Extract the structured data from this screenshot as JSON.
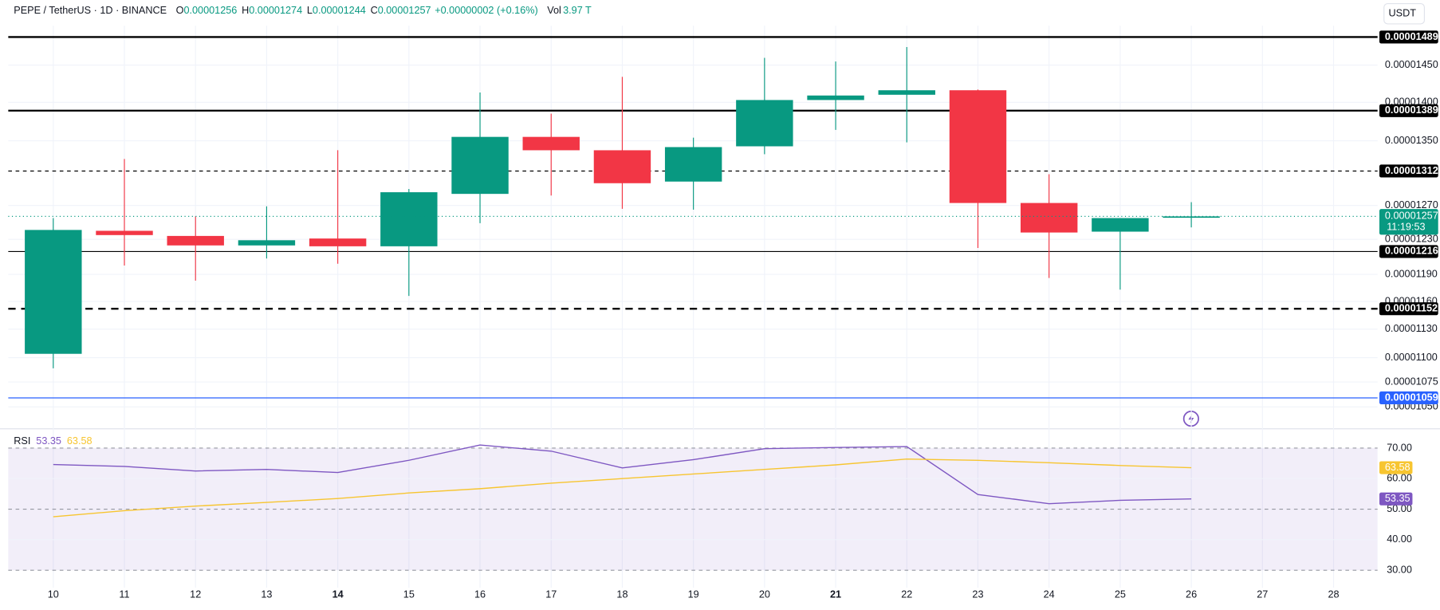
{
  "header": {
    "symbol": "PEPE / TetherUS · 1D · BINANCE",
    "ohlc_labels": [
      "O",
      "H",
      "L",
      "C"
    ],
    "change": "+0.00000002 (+0.16%)",
    "volume_label": "Vol",
    "volume": "3.97 T",
    "currency": "USDT"
  },
  "chart_data": [
    {
      "type": "candlestick",
      "categories": [
        "10",
        "11",
        "12",
        "13",
        "14",
        "15",
        "16",
        "17",
        "18",
        "19",
        "20",
        "21",
        "22",
        "23",
        "24",
        "25",
        "26",
        "27",
        "28"
      ],
      "open": [
        1.104e-05,
        1.24e-05,
        1.234e-05,
        1.223e-05,
        1.231e-05,
        1.222e-05,
        1.284e-05,
        1.355e-05,
        1.338e-05,
        1.299e-05,
        1.343e-05,
        1.403e-05,
        1.41e-05,
        1.416e-05,
        1.273e-05,
        1.239e-05,
        1.256e-05,
        null,
        null
      ],
      "high": [
        1.255e-05,
        1.327e-05,
        1.257e-05,
        1.269e-05,
        1.338e-05,
        1.29e-05,
        1.413e-05,
        1.385e-05,
        1.434e-05,
        1.354e-05,
        1.46e-05,
        1.455e-05,
        1.475e-05,
        1.417e-05,
        1.308e-05,
        1.255e-05,
        1.274e-05,
        null,
        null
      ],
      "low": [
        1.089e-05,
        1.2e-05,
        1.183e-05,
        1.208e-05,
        1.202e-05,
        1.166e-05,
        1.249e-05,
        1.282e-05,
        1.266e-05,
        1.265e-05,
        1.333e-05,
        1.364e-05,
        1.348e-05,
        1.22e-05,
        1.186e-05,
        1.173e-05,
        1.244e-05,
        null,
        null
      ],
      "close": [
        1.241e-05,
        1.235e-05,
        1.223e-05,
        1.229e-05,
        1.222e-05,
        1.286e-05,
        1.355e-05,
        1.338e-05,
        1.297e-05,
        1.342e-05,
        1.403e-05,
        1.409e-05,
        1.416e-05,
        1.273e-05,
        1.238e-05,
        1.255e-05,
        1.257e-05,
        null,
        null
      ],
      "up_color": "#089981",
      "down_color": "#f23645",
      "ylim": [
        1.033e-05,
        1.505e-05
      ],
      "log_scale": true,
      "grid": true,
      "yticks": [
        {
          "value": 1.45e-05,
          "label": "0.00001450"
        },
        {
          "value": 1.4e-05,
          "label": "0.00001400"
        },
        {
          "value": 1.35e-05,
          "label": "0.00001350"
        },
        {
          "value": 1.27e-05,
          "label": "0.00001270"
        },
        {
          "value": 1.23e-05,
          "label": "0.00001230"
        },
        {
          "value": 1.19e-05,
          "label": "0.00001190"
        },
        {
          "value": 1.16e-05,
          "label": "0.00001160"
        },
        {
          "value": 1.13e-05,
          "label": "0.00001130"
        },
        {
          "value": 1.1e-05,
          "label": "0.00001100"
        },
        1.075e-05,
        {
          "value": 1.05e-05,
          "label": "0.00001050"
        }
      ],
      "levels": [
        {
          "value": 1.489e-05,
          "color": "#000000",
          "style": "bold-solid"
        },
        {
          "value": 1.389e-05,
          "color": "#000000",
          "style": "bold-solid"
        },
        {
          "value": 1.312e-05,
          "color": "#000000",
          "style": "dashed"
        },
        {
          "value": 1.216e-05,
          "color": "#000000",
          "style": "solid"
        },
        {
          "value": 1.152e-05,
          "color": "#000000",
          "style": "bold-dashed"
        },
        {
          "value": 1.059e-05,
          "color": "#2962ff",
          "style": "solid"
        }
      ],
      "countdown": "11:19:53"
    },
    {
      "type": "line",
      "title": "RSI",
      "ylim": [
        24,
        75.5
      ],
      "yticks": [
        {
          "value": 70,
          "label": "70.00"
        },
        {
          "value": 60,
          "label": "60.00"
        },
        {
          "value": 50,
          "label": "50.00"
        },
        {
          "value": 40,
          "label": "40.00"
        },
        {
          "value": 30,
          "label": "30.00"
        }
      ],
      "band_color": "#7e57c2",
      "series": [
        {
          "color": "#7e57c2",
          "values": [
            64.6,
            64,
            62.5,
            63,
            62,
            66,
            71,
            69,
            63.5,
            66.2,
            69.8,
            70.2,
            70.5,
            54.8,
            51.8,
            52.9,
            53.35,
            null,
            null
          ]
        },
        {
          "color": "#f7c530",
          "values": [
            47.5,
            49.5,
            51,
            52.2,
            53.5,
            55.3,
            56.7,
            58.5,
            60,
            61.5,
            63,
            64.5,
            66.4,
            66,
            65.2,
            64.3,
            63.58,
            null,
            null
          ]
        }
      ]
    }
  ]
}
